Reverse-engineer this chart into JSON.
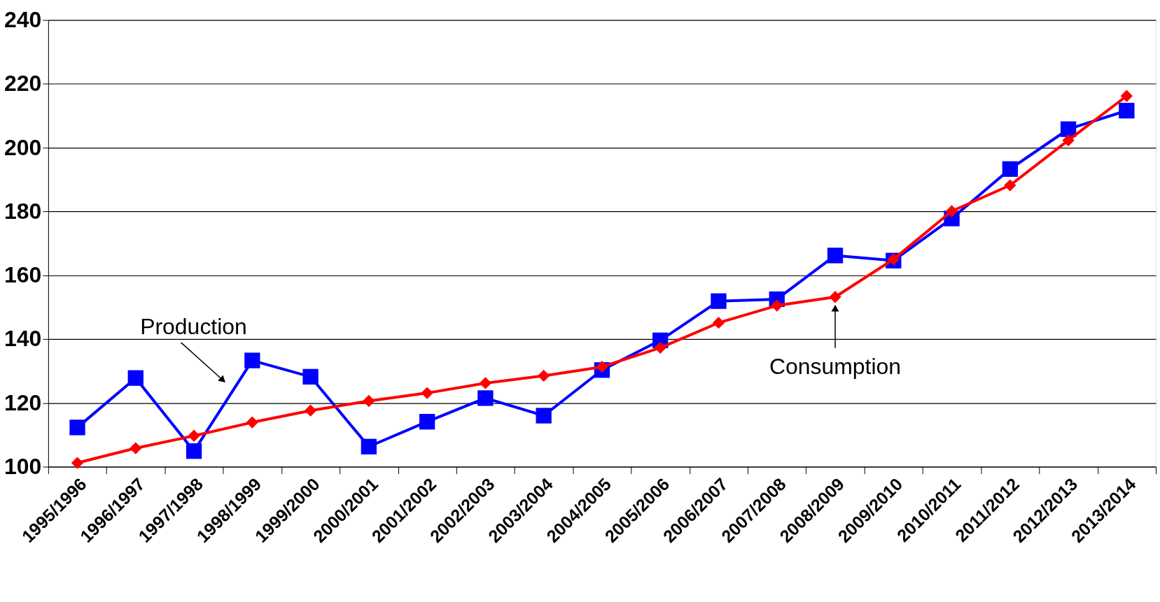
{
  "chart_data": {
    "type": "line",
    "categories": [
      "1995/1996",
      "1996/1997",
      "1997/1998",
      "1998/1999",
      "1999/2000",
      "2000/2001",
      "2001/2002",
      "2002/2003",
      "2003/2004",
      "2004/2005",
      "2005/2006",
      "2006/2007",
      "2007/2008",
      "2008/2009",
      "2009/2010",
      "2010/2011",
      "2011/2012",
      "2012/2013",
      "2013/2014"
    ],
    "series": [
      {
        "color": "#0000ff",
        "marker": "square",
        "values": [
          112.3,
          127.8,
          104.9,
          133.3,
          128.2,
          106.3,
          114.1,
          121.5,
          116.0,
          130.3,
          139.6,
          151.9,
          152.5,
          166.2,
          164.6,
          177.8,
          193.3,
          205.8,
          211.6
        ]
      },
      {
        "color": "#ff0000",
        "marker": "diamond",
        "values": [
          101.2,
          105.8,
          109.7,
          113.9,
          117.6,
          120.6,
          123.1,
          126.2,
          128.5,
          131.3,
          137.3,
          145.1,
          150.5,
          153.2,
          165.0,
          180.1,
          188.2,
          202.3,
          216.2
        ]
      }
    ],
    "ylim": [
      100,
      240
    ],
    "yticks": [
      100,
      120,
      140,
      160,
      180,
      200,
      220,
      240
    ],
    "grid": "y",
    "annotations": [
      "Production",
      {
        "text": "Consumption",
        "x": "2008/2009",
        "y": 153.2
      }
    ]
  }
}
